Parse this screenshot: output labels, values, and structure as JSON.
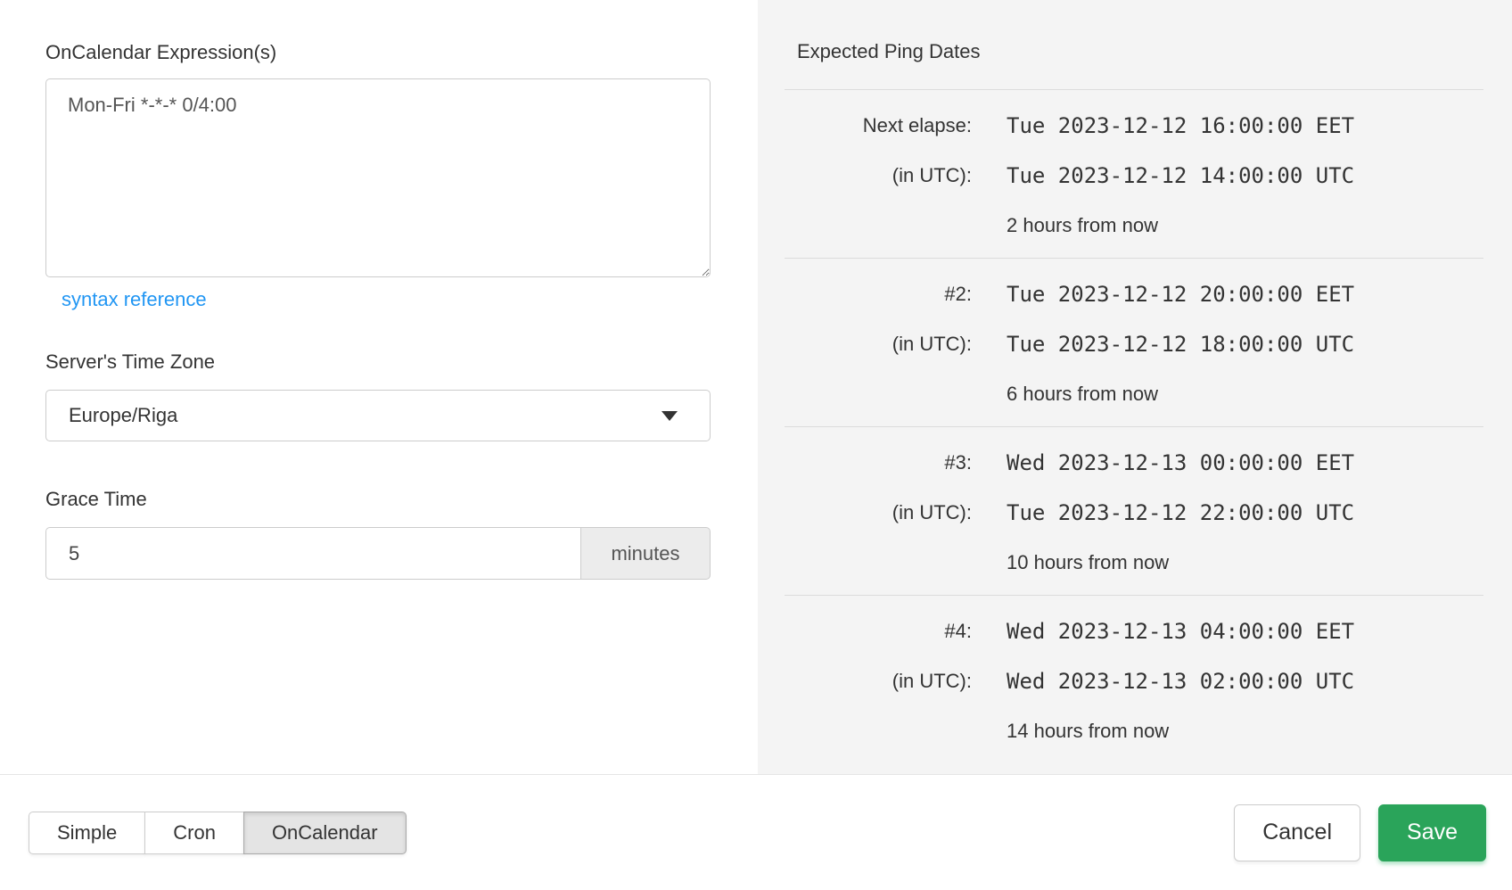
{
  "form": {
    "expression_label": "OnCalendar Expression(s)",
    "expression_value": "Mon-Fri *-*-* 0/4:00",
    "syntax_reference_label": "syntax reference",
    "timezone_label": "Server's Time Zone",
    "timezone_value": "Europe/Riga",
    "grace_label": "Grace Time",
    "grace_value": "5",
    "grace_unit": "minutes"
  },
  "preview": {
    "title": "Expected Ping Dates",
    "rows": [
      {
        "label": "Next elapse:",
        "local": "Tue 2023-12-12 16:00:00 EET",
        "utc_label": "(in UTC):",
        "utc": "Tue 2023-12-12 14:00:00 UTC",
        "relative": "2 hours from now"
      },
      {
        "label": "#2:",
        "local": "Tue 2023-12-12 20:00:00 EET",
        "utc_label": "(in UTC):",
        "utc": "Tue 2023-12-12 18:00:00 UTC",
        "relative": "6 hours from now"
      },
      {
        "label": "#3:",
        "local": "Wed 2023-12-13 00:00:00 EET",
        "utc_label": "(in UTC):",
        "utc": "Tue 2023-12-12 22:00:00 UTC",
        "relative": "10 hours from now"
      },
      {
        "label": "#4:",
        "local": "Wed 2023-12-13 04:00:00 EET",
        "utc_label": "(in UTC):",
        "utc": "Wed 2023-12-13 02:00:00 UTC",
        "relative": "14 hours from now"
      }
    ]
  },
  "footer": {
    "tabs": [
      {
        "label": "Simple",
        "active": false
      },
      {
        "label": "Cron",
        "active": false
      },
      {
        "label": "OnCalendar",
        "active": true
      }
    ],
    "cancel_label": "Cancel",
    "save_label": "Save"
  },
  "colors": {
    "link_blue": "#2196f3",
    "save_green": "#2aa45a",
    "panel_background": "#f4f4f4",
    "active_tab_background": "#e4e4e4"
  }
}
